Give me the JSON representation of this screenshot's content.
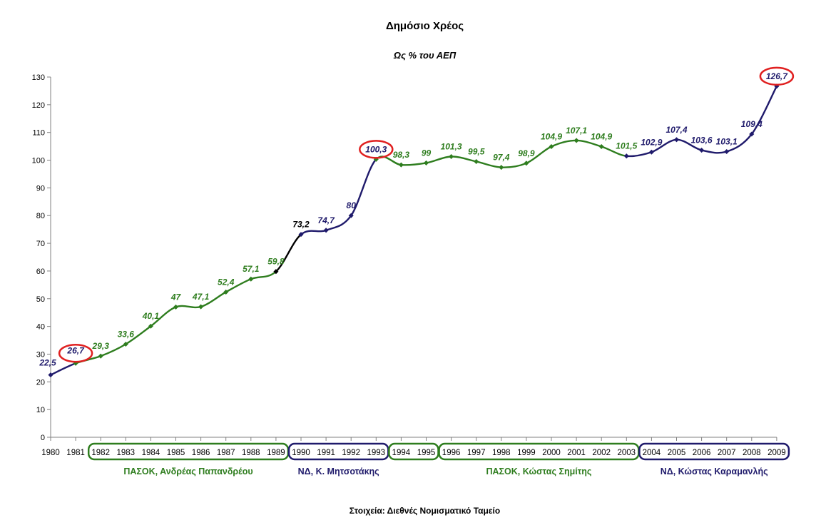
{
  "chart_data": {
    "type": "line",
    "title": "Δημόσιο Χρέος",
    "subtitle": "Ως % του ΑΕΠ",
    "source": "Στοιχεία: Διεθνές Νομισματικό Ταμείο",
    "ylim": [
      0,
      130
    ],
    "yticks": [
      0,
      10,
      20,
      30,
      40,
      50,
      60,
      70,
      80,
      90,
      100,
      110,
      120,
      130
    ],
    "grid": false,
    "categories": [
      "1980",
      "1981",
      "1982",
      "1983",
      "1984",
      "1985",
      "1986",
      "1987",
      "1988",
      "1989",
      "1990",
      "1991",
      "1992",
      "1993",
      "1994",
      "1995",
      "1996",
      "1997",
      "1998",
      "1999",
      "2000",
      "2001",
      "2002",
      "2003",
      "2004",
      "2005",
      "2006",
      "2007",
      "2008",
      "2009"
    ],
    "values": [
      22.5,
      26.7,
      29.3,
      33.6,
      40.1,
      47,
      47.1,
      52.4,
      57.1,
      59.8,
      73.2,
      74.7,
      80,
      100.3,
      98.3,
      99,
      101.3,
      99.5,
      97.4,
      98.9,
      104.9,
      107.1,
      104.9,
      101.5,
      102.9,
      107.4,
      103.6,
      103.1,
      109.4,
      126.7
    ],
    "value_labels": [
      "22,5",
      "26,7",
      "29,3",
      "33,6",
      "40,1",
      "47",
      "47,1",
      "52,4",
      "57,1",
      "59,8",
      "73,2",
      "74,7",
      "80",
      "100,3",
      "98,3",
      "99",
      "101,3",
      "99,5",
      "97,4",
      "98,9",
      "104,9",
      "107,1",
      "104,9",
      "101,5",
      "102,9",
      "107,4",
      "103,6",
      "103,1",
      "109,4",
      "126,7"
    ],
    "highlighted": [
      "1981",
      "1993",
      "2009"
    ],
    "segments": [
      {
        "from": "1980",
        "to": "1981",
        "color": "#1f1a6b"
      },
      {
        "from": "1981",
        "to": "1989",
        "color": "#2e7d1e"
      },
      {
        "from": "1989",
        "to": "1990",
        "color": "#000000"
      },
      {
        "from": "1990",
        "to": "1993",
        "color": "#1f1a6b"
      },
      {
        "from": "1993",
        "to": "2003",
        "color": "#2e7d1e"
      },
      {
        "from": "2003",
        "to": "2009",
        "color": "#1f1a6b"
      }
    ],
    "periods": [
      {
        "label": "ΠΑΣΟΚ, Ανδρέας Παπανδρέου",
        "years": [
          "1982",
          "1989"
        ],
        "color": "#2e7d1e"
      },
      {
        "label": "ΝΔ, Κ. Μητσοτάκης",
        "years": [
          "1990",
          "1993"
        ],
        "color": "#1f1a6b"
      },
      {
        "label": "",
        "years": [
          "1994",
          "1995"
        ],
        "color": "#2e7d1e"
      },
      {
        "label": "ΠΑΣΟΚ, Κώστας Σημίτης",
        "years": [
          "1996",
          "2003"
        ],
        "color": "#2e7d1e"
      },
      {
        "label": "ΝΔ, Κώστας Καραμανλής",
        "years": [
          "2004",
          "2009"
        ],
        "color": "#1f1a6b"
      }
    ],
    "colors": {
      "green": "#2e7d1e",
      "navy": "#1f1a6b",
      "highlight": "#e02020",
      "black": "#000000"
    }
  }
}
